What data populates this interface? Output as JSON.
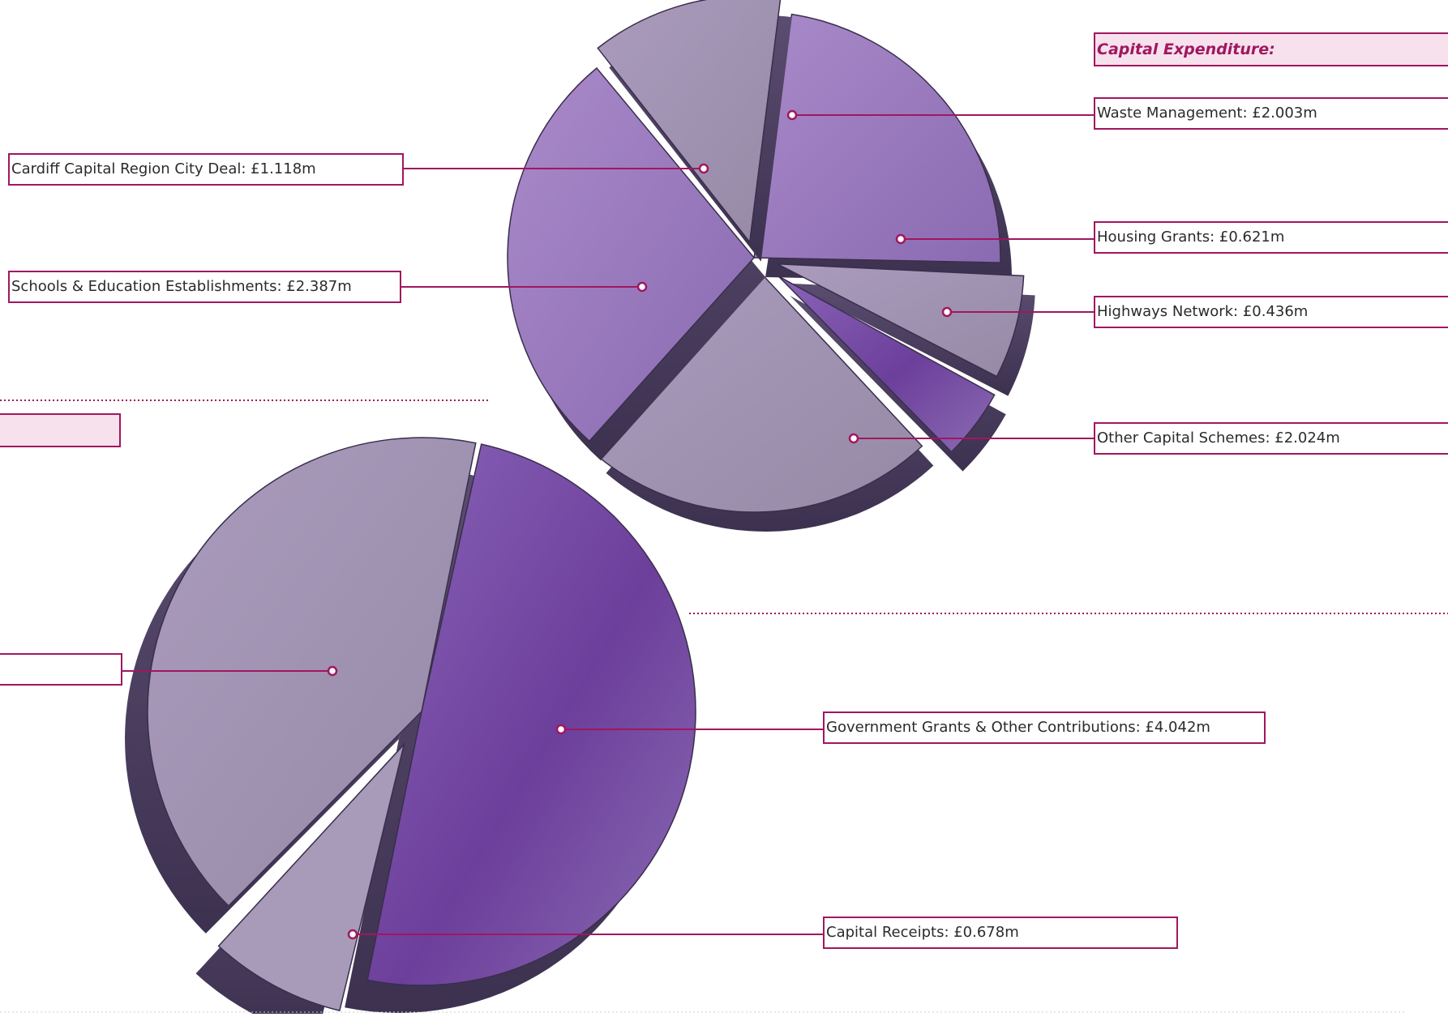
{
  "chart_data": [
    {
      "type": "pie",
      "title": "Capital Expenditure:",
      "categories": [
        "Waste Management",
        "Housing Grants",
        "Highways Network",
        "Other Capital Schemes",
        "Schools & Education Establishments",
        "Cardiff Capital Region City Deal"
      ],
      "values": [
        2.003,
        0.621,
        0.436,
        2.024,
        2.387,
        1.118
      ],
      "labels": [
        "Waste Management: £2.003m",
        "Housing Grants: £0.621m",
        "Highways Network: £0.436m",
        "Other Capital Schemes: £2.024m",
        "Schools & Education Establishments: £2.387m",
        "Cardiff Capital Region City Deal: £1.118m"
      ],
      "unit": "£m"
    },
    {
      "type": "pie",
      "title": "",
      "categories": [
        "Government Grants & Other Contributions",
        "Capital Receipts",
        ""
      ],
      "values": [
        4.042,
        0.678,
        null
      ],
      "labels": [
        "Government Grants & Other Contributions: £4.042m",
        "Capital Receipts: £0.678m",
        ""
      ],
      "unit": "£m"
    }
  ],
  "colors": {
    "accent": "#a0175f",
    "accent_fill": "#f6e1ec",
    "slice_light": "#9e8faf",
    "slice_mid": "#9c80bc",
    "slice_dark": "#7b52a8",
    "slice_pale": "#a79bb9",
    "side_dark": "#4a3e5e"
  }
}
